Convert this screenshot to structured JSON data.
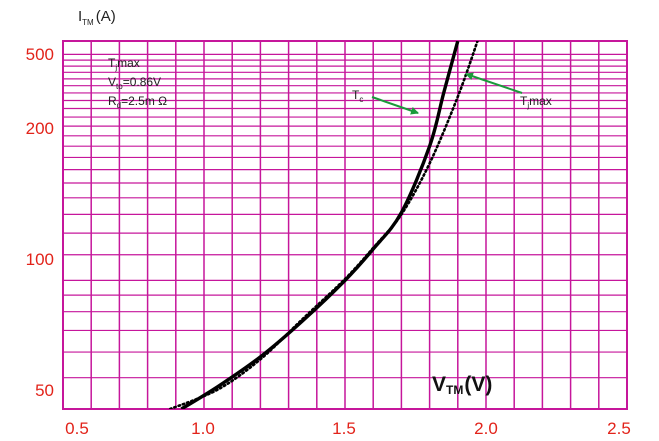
{
  "chart_data": {
    "type": "line",
    "y_axis_label": {
      "main": "I",
      "sub": "TM",
      "unit": "(A)"
    },
    "x_axis_label": {
      "main": "V",
      "sub": "TM",
      "unit": "(V)"
    },
    "x_ticks": [
      "0.5",
      "1.0",
      "1.5",
      "2.0",
      "2.5"
    ],
    "y_ticks": [
      "500",
      "200",
      "100",
      "50"
    ],
    "xlim": [
      0.5,
      2.5
    ],
    "ylim": [
      40,
      550
    ],
    "y_scale": "log",
    "grid": true,
    "colors": {
      "grid": "#c6169b",
      "ticks": "#e2231a",
      "arrow": "#1a9a3a",
      "curve": "#000000"
    },
    "params": {
      "line1": {
        "main": "T",
        "sub": "j",
        "rest": "max"
      },
      "line2": {
        "main": "V",
        "sub": "to",
        "rest": "=0.86V"
      },
      "line3": {
        "main": "R",
        "sub": "d",
        "rest": "=2.5m Ω"
      }
    },
    "annotations": {
      "tc": {
        "main": "T",
        "sub": "c"
      },
      "tjmax": {
        "main": "T",
        "sub": "j",
        "rest": "max"
      }
    },
    "series": [
      {
        "style": "solid",
        "x": [
          0.92,
          1.05,
          1.2,
          1.35,
          1.5,
          1.6,
          1.7,
          1.8,
          1.85,
          1.9
        ],
        "y": [
          40,
          47,
          58,
          75,
          100,
          125,
          162,
          260,
          380,
          550
        ]
      },
      {
        "style": "dotted",
        "x": [
          0.88,
          1.05,
          1.2,
          1.35,
          1.5,
          1.6,
          1.7,
          1.8,
          1.9,
          1.97
        ],
        "y": [
          40,
          46,
          57,
          76,
          101,
          126,
          160,
          230,
          370,
          550
        ]
      }
    ]
  }
}
